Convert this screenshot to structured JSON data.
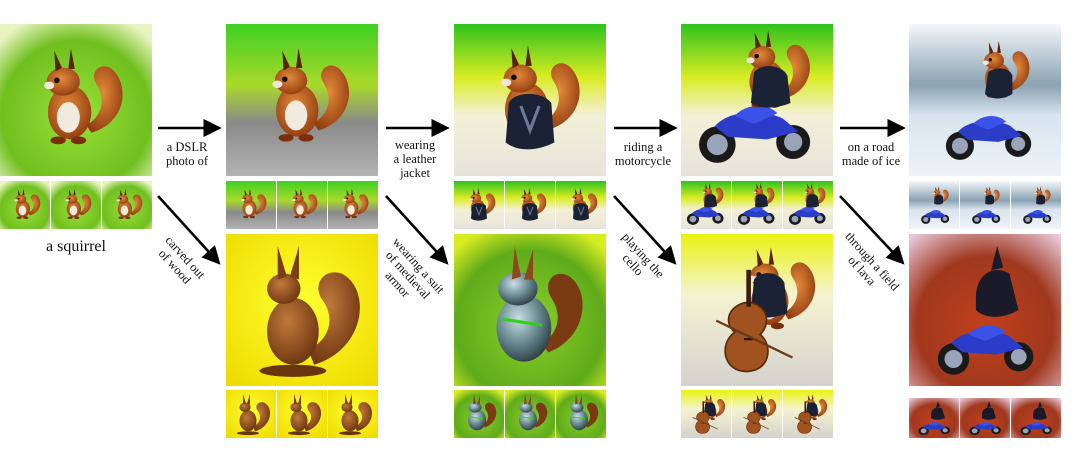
{
  "figure": {
    "caption": "a squirrel",
    "top_prompts": [
      "a DSLR\nphoto of",
      "wearing\na leather\njacket",
      "riding a\nmotorcycle",
      "on a road\nmade of ice"
    ],
    "bottom_prompts": [
      "carved out\nof wood",
      "wearing a suit\nof medieval\narmor",
      "playing the\ncello",
      "through a field\nof lava"
    ],
    "colors": {
      "grass": "#7cc22a",
      "sky_yellow": "#f2ea12",
      "fur": "#b9501a",
      "jacket": "#1c2235",
      "moto_blue": "#2a3cc8",
      "wood": "#8a4a1c",
      "armor": "#6f8e95",
      "ice": "#d8e4ee",
      "lava": "#c2401c",
      "cello": "#a0521f"
    }
  }
}
